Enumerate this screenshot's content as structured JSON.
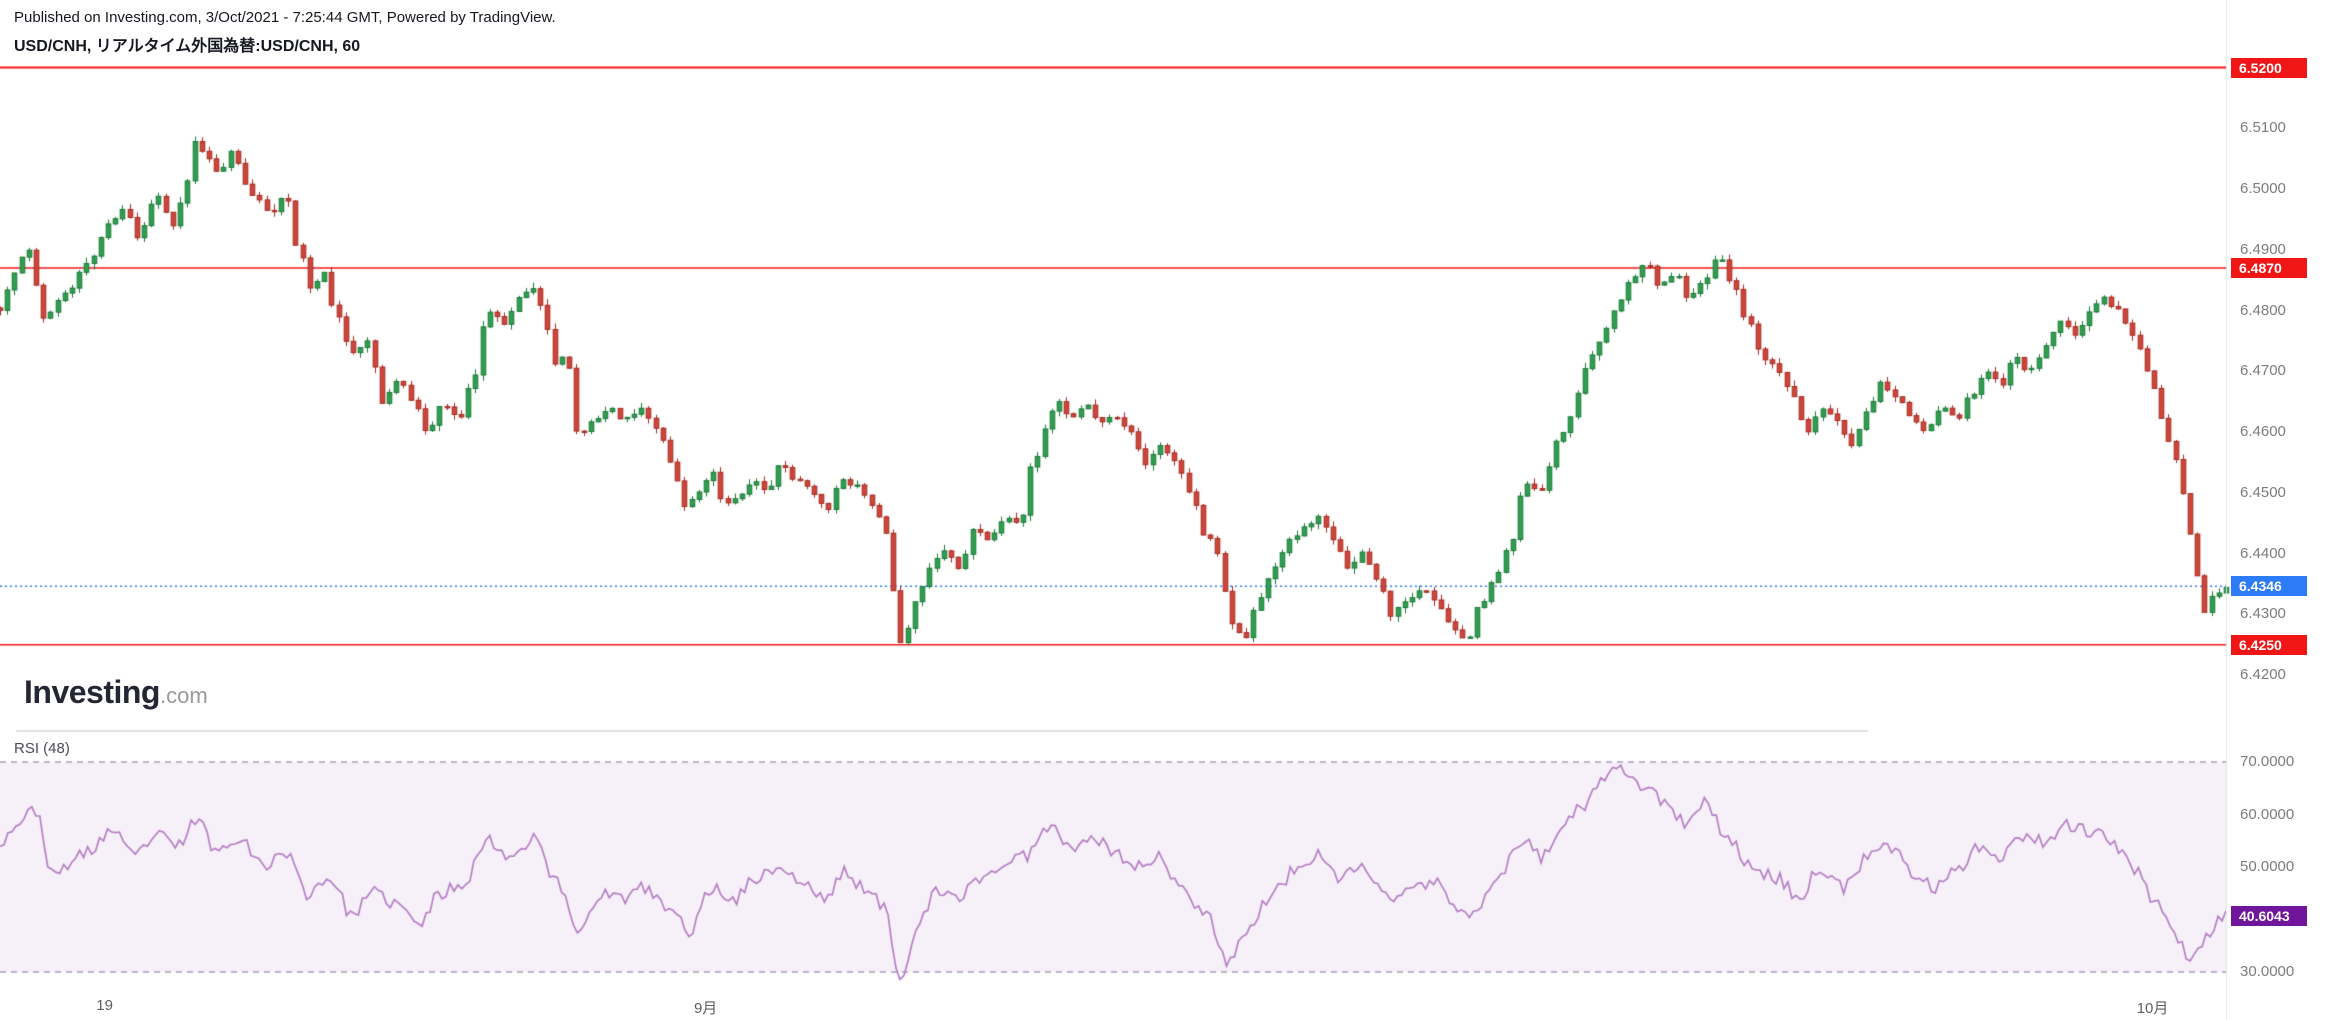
{
  "header": {
    "published_line": "Published on Investing.com, 3/Oct/2021 - 7:25:44 GMT, Powered by TradingView.",
    "symbol_line": "USD/CNH, リアルタイム外国為替:USD/CNH, 60"
  },
  "logo": {
    "name": "Investing",
    "suffix": ".com"
  },
  "colors": {
    "level_red": "#f01616",
    "current_blue": "#2e7bf6",
    "up_stroke": "#1b7837",
    "up_fill": "#2f9e4f",
    "down_stroke": "#a32a22",
    "down_fill": "#d0453a",
    "rsi_line": "#b57fc6",
    "rsi_band_fill": "rgba(155,89,182,0.09)",
    "rsi_band_edge": "#ad9cbd",
    "rsi_badge": "#70169a",
    "axis_line": "#e6e6e6",
    "separator": "#c4c4c4"
  },
  "price_axis": {
    "ticks": [
      {
        "value": 6.51,
        "label": "6.5100"
      },
      {
        "value": 6.5,
        "label": "6.5000"
      },
      {
        "value": 6.49,
        "label": "6.4900"
      },
      {
        "value": 6.48,
        "label": "6.4800"
      },
      {
        "value": 6.47,
        "label": "6.4700"
      },
      {
        "value": 6.46,
        "label": "6.4600"
      },
      {
        "value": 6.45,
        "label": "6.4500"
      },
      {
        "value": 6.44,
        "label": "6.4400"
      },
      {
        "value": 6.43,
        "label": "6.4300"
      },
      {
        "value": 6.42,
        "label": "6.4200"
      }
    ],
    "levels": [
      {
        "value": 6.52,
        "label": "6.5200"
      },
      {
        "value": 6.487,
        "label": "6.4870"
      },
      {
        "value": 6.425,
        "label": "6.4250"
      }
    ],
    "current": {
      "value": 6.4346,
      "label": "6.4346"
    }
  },
  "rsi": {
    "title": "RSI (48)",
    "ticks": [
      {
        "value": 70,
        "label": "70.0000"
      },
      {
        "value": 60,
        "label": "60.0000"
      },
      {
        "value": 50,
        "label": "50.0000"
      },
      {
        "value": 30,
        "label": "30.0000"
      }
    ],
    "current": {
      "value": 40.6043,
      "label": "40.6043"
    }
  },
  "x_axis": {
    "labels": [
      {
        "text": "19",
        "xf": 0.047
      },
      {
        "text": "9月",
        "xf": 0.317
      },
      {
        "text": "10月",
        "xf": 0.967
      }
    ]
  },
  "chart_data": [
    {
      "type": "candlestick",
      "symbol": "USD/CNH",
      "interval_minutes": 60,
      "ylim": [
        6.415,
        6.525
      ],
      "horizontal_levels": [
        6.52,
        6.487,
        6.425
      ],
      "last_price": 6.4346,
      "x_axis_labels": [
        "19",
        "9月",
        "10月"
      ],
      "price_path": [
        [
          0.0,
          6.48
        ],
        [
          0.006,
          6.486
        ],
        [
          0.012,
          6.49
        ],
        [
          0.02,
          6.479
        ],
        [
          0.03,
          6.483
        ],
        [
          0.04,
          6.488
        ],
        [
          0.05,
          6.495
        ],
        [
          0.056,
          6.497
        ],
        [
          0.062,
          6.492
        ],
        [
          0.07,
          6.499
        ],
        [
          0.078,
          6.494
        ],
        [
          0.084,
          6.501
        ],
        [
          0.088,
          6.508
        ],
        [
          0.093,
          6.505
        ],
        [
          0.098,
          6.503
        ],
        [
          0.104,
          6.506
        ],
        [
          0.11,
          6.501
        ],
        [
          0.116,
          6.498
        ],
        [
          0.122,
          6.496
        ],
        [
          0.128,
          6.499
        ],
        [
          0.134,
          6.49
        ],
        [
          0.14,
          6.483
        ],
        [
          0.145,
          6.487
        ],
        [
          0.151,
          6.479
        ],
        [
          0.158,
          6.473
        ],
        [
          0.165,
          6.475
        ],
        [
          0.172,
          6.465
        ],
        [
          0.179,
          6.469
        ],
        [
          0.185,
          6.465
        ],
        [
          0.192,
          6.46
        ],
        [
          0.199,
          6.465
        ],
        [
          0.206,
          6.462
        ],
        [
          0.212,
          6.468
        ],
        [
          0.219,
          6.48
        ],
        [
          0.226,
          6.478
        ],
        [
          0.233,
          6.482
        ],
        [
          0.24,
          6.484
        ],
        [
          0.246,
          6.477
        ],
        [
          0.25,
          6.47
        ],
        [
          0.254,
          6.473
        ],
        [
          0.26,
          6.459
        ],
        [
          0.267,
          6.462
        ],
        [
          0.274,
          6.464
        ],
        [
          0.281,
          6.462
        ],
        [
          0.288,
          6.464
        ],
        [
          0.295,
          6.461
        ],
        [
          0.301,
          6.455
        ],
        [
          0.308,
          6.448
        ],
        [
          0.314,
          6.45
        ],
        [
          0.32,
          6.453
        ],
        [
          0.325,
          6.448
        ],
        [
          0.331,
          6.449
        ],
        [
          0.338,
          6.452
        ],
        [
          0.345,
          6.45
        ],
        [
          0.351,
          6.455
        ],
        [
          0.358,
          6.452
        ],
        [
          0.365,
          6.45
        ],
        [
          0.371,
          6.447
        ],
        [
          0.378,
          6.452
        ],
        [
          0.385,
          6.4515
        ],
        [
          0.391,
          6.448
        ],
        [
          0.397,
          6.445
        ],
        [
          0.402,
          6.433
        ],
        [
          0.405,
          6.425
        ],
        [
          0.411,
          6.432
        ],
        [
          0.418,
          6.438
        ],
        [
          0.424,
          6.44
        ],
        [
          0.431,
          6.438
        ],
        [
          0.438,
          6.444
        ],
        [
          0.444,
          6.442
        ],
        [
          0.451,
          6.446
        ],
        [
          0.458,
          6.445
        ],
        [
          0.464,
          6.455
        ],
        [
          0.471,
          6.462
        ],
        [
          0.475,
          6.465
        ],
        [
          0.481,
          6.462
        ],
        [
          0.488,
          6.464
        ],
        [
          0.495,
          6.462
        ],
        [
          0.501,
          6.4625
        ],
        [
          0.508,
          6.46
        ],
        [
          0.515,
          6.455
        ],
        [
          0.521,
          6.458
        ],
        [
          0.528,
          6.455
        ],
        [
          0.535,
          6.45
        ],
        [
          0.541,
          6.443
        ],
        [
          0.548,
          6.44
        ],
        [
          0.552,
          6.429
        ],
        [
          0.559,
          6.426
        ],
        [
          0.565,
          6.432
        ],
        [
          0.572,
          6.438
        ],
        [
          0.579,
          6.442
        ],
        [
          0.585,
          6.444
        ],
        [
          0.592,
          6.446
        ],
        [
          0.599,
          6.442
        ],
        [
          0.605,
          6.438
        ],
        [
          0.612,
          6.44
        ],
        [
          0.619,
          6.436
        ],
        [
          0.625,
          6.43
        ],
        [
          0.632,
          6.432
        ],
        [
          0.639,
          6.434
        ],
        [
          0.645,
          6.432
        ],
        [
          0.652,
          6.428
        ],
        [
          0.659,
          6.426
        ],
        [
          0.665,
          6.432
        ],
        [
          0.672,
          6.436
        ],
        [
          0.679,
          6.442
        ],
        [
          0.685,
          6.452
        ],
        [
          0.692,
          6.45
        ],
        [
          0.699,
          6.458
        ],
        [
          0.705,
          6.462
        ],
        [
          0.712,
          6.47
        ],
        [
          0.719,
          6.475
        ],
        [
          0.725,
          6.48
        ],
        [
          0.732,
          6.485
        ],
        [
          0.739,
          6.488
        ],
        [
          0.745,
          6.484
        ],
        [
          0.752,
          6.486
        ],
        [
          0.759,
          6.482
        ],
        [
          0.765,
          6.485
        ],
        [
          0.772,
          6.489
        ],
        [
          0.779,
          6.484
        ],
        [
          0.785,
          6.478
        ],
        [
          0.792,
          6.472
        ],
        [
          0.799,
          6.47
        ],
        [
          0.805,
          6.466
        ],
        [
          0.812,
          6.46
        ],
        [
          0.819,
          6.464
        ],
        [
          0.825,
          6.462
        ],
        [
          0.832,
          6.458
        ],
        [
          0.839,
          6.464
        ],
        [
          0.845,
          6.468
        ],
        [
          0.852,
          6.466
        ],
        [
          0.859,
          6.462
        ],
        [
          0.865,
          6.46
        ],
        [
          0.872,
          6.464
        ],
        [
          0.879,
          6.462
        ],
        [
          0.885,
          6.466
        ],
        [
          0.892,
          6.47
        ],
        [
          0.899,
          6.468
        ],
        [
          0.905,
          6.472
        ],
        [
          0.912,
          6.47
        ],
        [
          0.919,
          6.474
        ],
        [
          0.925,
          6.478
        ],
        [
          0.932,
          6.476
        ],
        [
          0.939,
          6.48
        ],
        [
          0.945,
          6.482
        ],
        [
          0.952,
          6.48
        ],
        [
          0.958,
          6.476
        ],
        [
          0.965,
          6.47
        ],
        [
          0.971,
          6.462
        ],
        [
          0.977,
          6.456
        ],
        [
          0.981,
          6.45
        ],
        [
          0.985,
          6.442
        ],
        [
          0.988,
          6.434
        ],
        [
          0.991,
          6.43
        ],
        [
          0.994,
          6.433
        ],
        [
          1.0,
          6.4346
        ]
      ]
    },
    {
      "type": "line",
      "title": "RSI (48)",
      "ylim": [
        25,
        75
      ],
      "band": [
        30,
        70
      ],
      "tick_values": [
        70,
        60,
        50,
        30
      ],
      "last_value": 40.6043,
      "points": [
        [
          0.0,
          55
        ],
        [
          0.01,
          59
        ],
        [
          0.016,
          61
        ],
        [
          0.024,
          48
        ],
        [
          0.032,
          51
        ],
        [
          0.04,
          53
        ],
        [
          0.05,
          57
        ],
        [
          0.06,
          52
        ],
        [
          0.07,
          56
        ],
        [
          0.08,
          54
        ],
        [
          0.088,
          59
        ],
        [
          0.098,
          53
        ],
        [
          0.108,
          56
        ],
        [
          0.118,
          50
        ],
        [
          0.128,
          53
        ],
        [
          0.138,
          45
        ],
        [
          0.148,
          48
        ],
        [
          0.158,
          41
        ],
        [
          0.168,
          45
        ],
        [
          0.178,
          43
        ],
        [
          0.188,
          39
        ],
        [
          0.198,
          45
        ],
        [
          0.208,
          47
        ],
        [
          0.219,
          55
        ],
        [
          0.23,
          52
        ],
        [
          0.24,
          56
        ],
        [
          0.25,
          47
        ],
        [
          0.26,
          38
        ],
        [
          0.27,
          45
        ],
        [
          0.28,
          44
        ],
        [
          0.29,
          46
        ],
        [
          0.3,
          42
        ],
        [
          0.31,
          38
        ],
        [
          0.32,
          46
        ],
        [
          0.33,
          44
        ],
        [
          0.34,
          48
        ],
        [
          0.35,
          50
        ],
        [
          0.36,
          47
        ],
        [
          0.37,
          44
        ],
        [
          0.38,
          49
        ],
        [
          0.39,
          45
        ],
        [
          0.398,
          42
        ],
        [
          0.404,
          29
        ],
        [
          0.412,
          38
        ],
        [
          0.42,
          45
        ],
        [
          0.43,
          44
        ],
        [
          0.44,
          48
        ],
        [
          0.45,
          50
        ],
        [
          0.46,
          52
        ],
        [
          0.471,
          58
        ],
        [
          0.481,
          54
        ],
        [
          0.49,
          56
        ],
        [
          0.5,
          53
        ],
        [
          0.51,
          50
        ],
        [
          0.52,
          52
        ],
        [
          0.53,
          46
        ],
        [
          0.541,
          42
        ],
        [
          0.552,
          32
        ],
        [
          0.56,
          38
        ],
        [
          0.572,
          45
        ],
        [
          0.583,
          50
        ],
        [
          0.592,
          52
        ],
        [
          0.6,
          48
        ],
        [
          0.612,
          50
        ],
        [
          0.624,
          44
        ],
        [
          0.634,
          46
        ],
        [
          0.645,
          47
        ],
        [
          0.655,
          42
        ],
        [
          0.66,
          40
        ],
        [
          0.672,
          48
        ],
        [
          0.685,
          55
        ],
        [
          0.692,
          52
        ],
        [
          0.703,
          58
        ],
        [
          0.712,
          62
        ],
        [
          0.72,
          66
        ],
        [
          0.728,
          69
        ],
        [
          0.739,
          65
        ],
        [
          0.748,
          62
        ],
        [
          0.758,
          58
        ],
        [
          0.766,
          62
        ],
        [
          0.776,
          56
        ],
        [
          0.786,
          50
        ],
        [
          0.798,
          48
        ],
        [
          0.808,
          44
        ],
        [
          0.818,
          50
        ],
        [
          0.828,
          46
        ],
        [
          0.84,
          52
        ],
        [
          0.85,
          54
        ],
        [
          0.861,
          48
        ],
        [
          0.87,
          46
        ],
        [
          0.88,
          50
        ],
        [
          0.888,
          54
        ],
        [
          0.898,
          52
        ],
        [
          0.908,
          56
        ],
        [
          0.918,
          55
        ],
        [
          0.928,
          58
        ],
        [
          0.938,
          57
        ],
        [
          0.948,
          55
        ],
        [
          0.958,
          50
        ],
        [
          0.968,
          44
        ],
        [
          0.976,
          38
        ],
        [
          0.983,
          33
        ],
        [
          0.989,
          36
        ],
        [
          1.0,
          40.6
        ]
      ]
    }
  ]
}
